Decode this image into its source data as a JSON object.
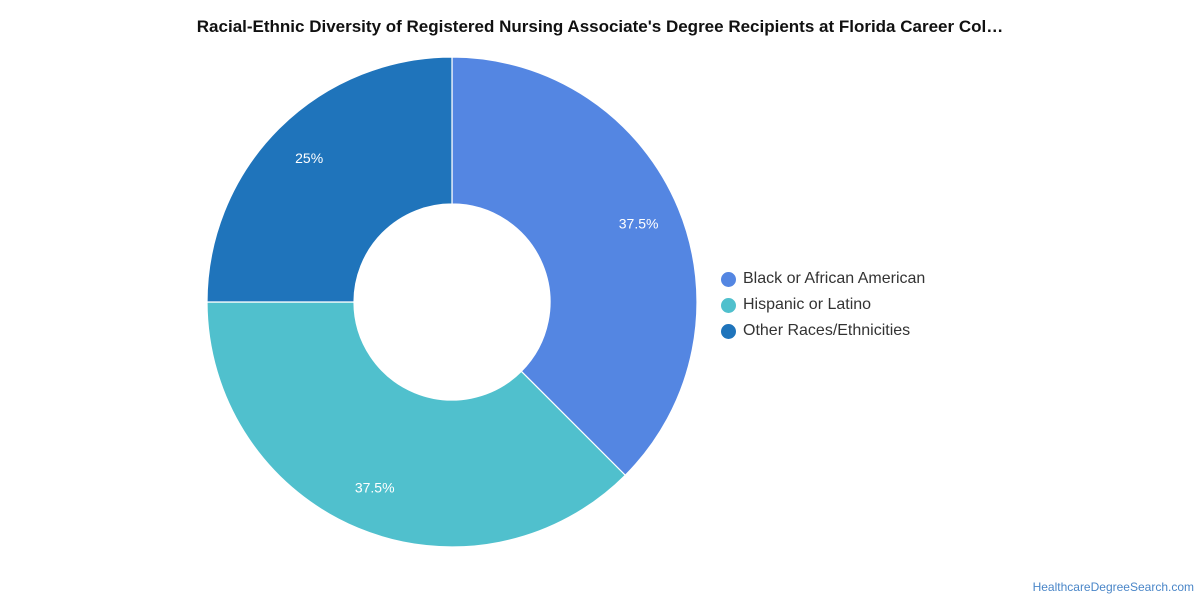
{
  "chart_data": {
    "type": "pie",
    "title": "Racial-Ethnic Diversity of Registered Nursing Associate's Degree Recipients at Florida Career Col…",
    "hole": true,
    "legend_position": "right",
    "slices": [
      {
        "label": "Black or African American",
        "value": 37.5,
        "display": "37.5%",
        "color": "#5486e2"
      },
      {
        "label": "Hispanic or Latino",
        "value": 37.5,
        "display": "37.5%",
        "color": "#50c0cd"
      },
      {
        "label": "Other Races/Ethnicities",
        "value": 25,
        "display": "25%",
        "color": "#1f74bb"
      }
    ]
  },
  "footer": {
    "source": "HealthcareDegreeSearch.com"
  }
}
